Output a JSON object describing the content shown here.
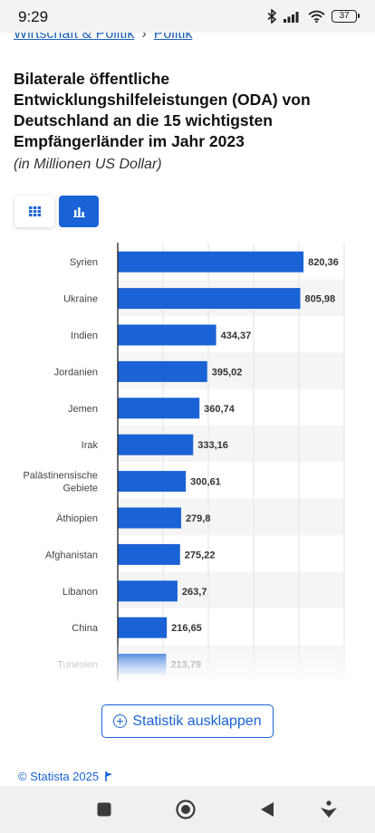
{
  "status_bar": {
    "time": "9:29",
    "battery": "37"
  },
  "breadcrumb": {
    "item1": "Wirtschaft & Politik",
    "separator": "›",
    "item2": "Politik"
  },
  "chart_data": {
    "type": "bar",
    "orientation": "horizontal",
    "title": "Bilaterale öffentliche Entwicklungshilfeleistungen (ODA) von Deutschland an die 15 wichtigsten Empfängerländer im Jahr 2023",
    "subtitle": "(in Millionen US Dollar)",
    "categories": [
      "Syrien",
      "Ukraine",
      "Indien",
      "Jordanien",
      "Jemen",
      "Irak",
      "Palästinensische Gebiete",
      "Äthiopien",
      "Afghanistan",
      "Libanon",
      "China",
      "Tunesien"
    ],
    "category_lines": [
      [
        "Syrien"
      ],
      [
        "Ukraine"
      ],
      [
        "Indien"
      ],
      [
        "Jordanien"
      ],
      [
        "Jemen"
      ],
      [
        "Irak"
      ],
      [
        "Palästinensische",
        "Gebiete"
      ],
      [
        "Äthiopien"
      ],
      [
        "Afghanistan"
      ],
      [
        "Libanon"
      ],
      [
        "China"
      ],
      [
        "Tunesien"
      ]
    ],
    "values": [
      820.36,
      805.98,
      434.37,
      395.02,
      360.74,
      333.16,
      300.61,
      279.8,
      275.22,
      263.7,
      216.65,
      213.79
    ],
    "value_labels": [
      "820,36",
      "805,98",
      "434,37",
      "395,02",
      "360,74",
      "333,16",
      "300,61",
      "279,8",
      "275,22",
      "263,7",
      "216,65",
      "213,79"
    ],
    "xlim": [
      0,
      1000
    ],
    "grid": true,
    "bar_color": "#1a63d6"
  },
  "actions": {
    "expand_label": "Statistik ausklappen"
  },
  "footer": {
    "copyright": "© Statista 2025"
  },
  "icons": {
    "table_view": "grid-icon",
    "chart_view": "bar-chart-icon",
    "expand": "plus-circle-icon",
    "flag": "flag-icon"
  }
}
